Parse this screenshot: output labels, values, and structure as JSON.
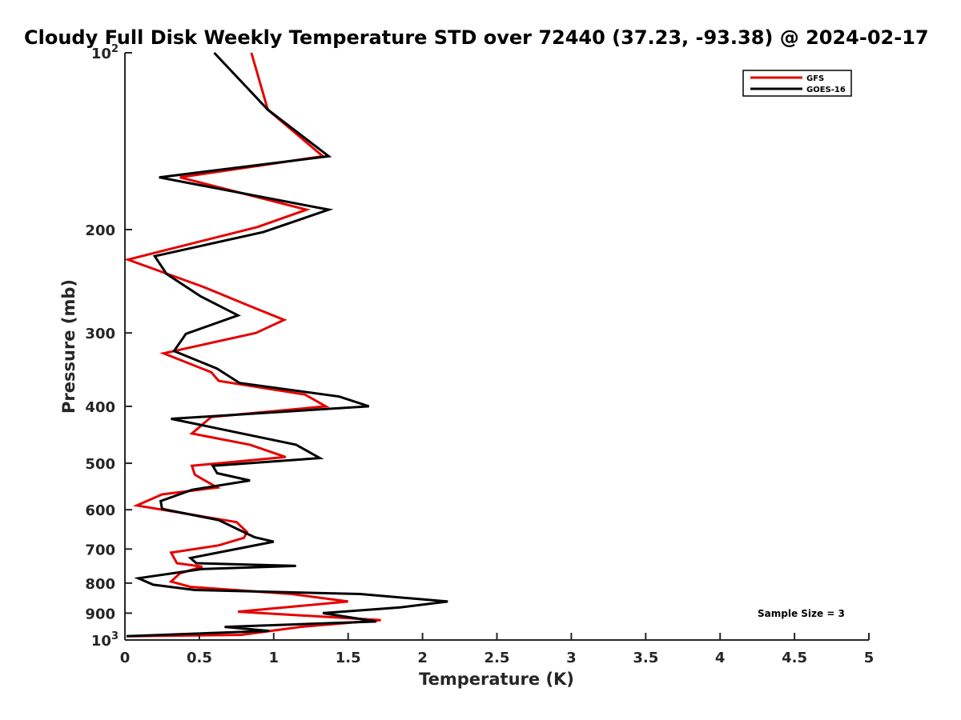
{
  "chart_data": {
    "type": "line",
    "title": "Cloudy Full Disk Weekly Temperature STD over 72440 (37.23, -93.38) @ 2024-02-17",
    "xlabel": "Temperature (K)",
    "ylabel": "Pressure (mb)",
    "xlim": [
      0,
      5
    ],
    "ylim": [
      1000,
      100
    ],
    "yscale": "log",
    "y_reversed": true,
    "x_ticks": [
      "0",
      "0.5",
      "1",
      "1.5",
      "2",
      "2.5",
      "3",
      "3.5",
      "4",
      "4.5",
      "5"
    ],
    "y_ticks": [
      {
        "value": 100,
        "base": "10",
        "exp": "2"
      },
      {
        "value": 200,
        "label": "200"
      },
      {
        "value": 300,
        "label": "300"
      },
      {
        "value": 400,
        "label": "400"
      },
      {
        "value": 500,
        "label": "500"
      },
      {
        "value": 600,
        "label": "600"
      },
      {
        "value": 700,
        "label": "700"
      },
      {
        "value": 800,
        "label": "800"
      },
      {
        "value": 900,
        "label": "900"
      },
      {
        "value": 1000,
        "base": "10",
        "exp": "3"
      }
    ],
    "legend_position": "top-right",
    "annotation": "Sample Size = 3",
    "series": [
      {
        "name": "GFS",
        "color": "#e60000",
        "points": [
          [
            0.85,
            100
          ],
          [
            0.96,
            125
          ],
          [
            1.33,
            150
          ],
          [
            0.37,
            163
          ],
          [
            1.22,
            185
          ],
          [
            0.89,
            198
          ],
          [
            0.02,
            225
          ],
          [
            0.52,
            250
          ],
          [
            0.84,
            270
          ],
          [
            1.07,
            285
          ],
          [
            0.88,
            300
          ],
          [
            0.26,
            325
          ],
          [
            0.58,
            350
          ],
          [
            0.63,
            362
          ],
          [
            1.21,
            382
          ],
          [
            1.35,
            400
          ],
          [
            0.58,
            417
          ],
          [
            0.45,
            445
          ],
          [
            0.84,
            465
          ],
          [
            1.08,
            488
          ],
          [
            0.45,
            505
          ],
          [
            0.47,
            523
          ],
          [
            0.62,
            550
          ],
          [
            0.25,
            565
          ],
          [
            0.08,
            590
          ],
          [
            0.42,
            610
          ],
          [
            0.75,
            630
          ],
          [
            0.82,
            655
          ],
          [
            0.8,
            670
          ],
          [
            0.63,
            690
          ],
          [
            0.31,
            710
          ],
          [
            0.35,
            740
          ],
          [
            0.52,
            750
          ],
          [
            0.37,
            770
          ],
          [
            0.31,
            795
          ],
          [
            0.44,
            812
          ],
          [
            1.12,
            835
          ],
          [
            1.5,
            860
          ],
          [
            0.76,
            895
          ],
          [
            1.72,
            925
          ],
          [
            1.18,
            950
          ],
          [
            0.78,
            980
          ],
          [
            0.03,
            985
          ]
        ]
      },
      {
        "name": "GOES-16",
        "color": "#000000",
        "points": [
          [
            0.6,
            100
          ],
          [
            0.96,
            125
          ],
          [
            1.37,
            150
          ],
          [
            0.23,
            163
          ],
          [
            1.37,
            185
          ],
          [
            0.93,
            202
          ],
          [
            0.2,
            222
          ],
          [
            0.28,
            238
          ],
          [
            0.51,
            260
          ],
          [
            0.76,
            280
          ],
          [
            0.41,
            301
          ],
          [
            0.33,
            322
          ],
          [
            0.62,
            345
          ],
          [
            0.77,
            365
          ],
          [
            1.44,
            385
          ],
          [
            1.64,
            400
          ],
          [
            0.31,
            420
          ],
          [
            1.15,
            465
          ],
          [
            1.31,
            490
          ],
          [
            0.59,
            505
          ],
          [
            0.62,
            520
          ],
          [
            0.84,
            535
          ],
          [
            0.45,
            555
          ],
          [
            0.24,
            580
          ],
          [
            0.25,
            598
          ],
          [
            0.63,
            625
          ],
          [
            0.87,
            668
          ],
          [
            1.0,
            680
          ],
          [
            0.44,
            725
          ],
          [
            0.48,
            740
          ],
          [
            1.15,
            748
          ],
          [
            0.52,
            757
          ],
          [
            0.09,
            785
          ],
          [
            0.19,
            805
          ],
          [
            0.47,
            822
          ],
          [
            1.58,
            835
          ],
          [
            2.17,
            860
          ],
          [
            1.85,
            880
          ],
          [
            1.33,
            900
          ],
          [
            1.69,
            930
          ],
          [
            0.67,
            950
          ],
          [
            0.97,
            965
          ],
          [
            0.01,
            985
          ]
        ]
      }
    ]
  }
}
